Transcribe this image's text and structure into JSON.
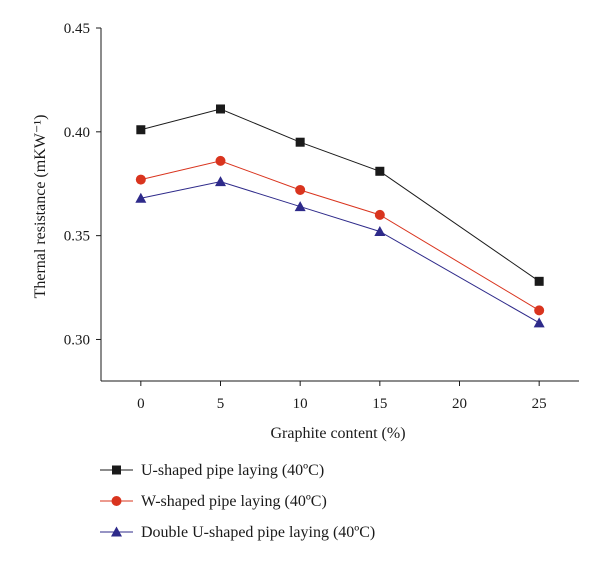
{
  "chart_data": {
    "type": "line",
    "xlabel": "Graphite content (%)",
    "ylabel": "Thernal resistance (mKW⁻¹)",
    "x_ticks": [
      "0",
      "5",
      "10",
      "15",
      "20",
      "25"
    ],
    "y_ticks": [
      "0.30",
      "0.35",
      "0.40",
      "0.45"
    ],
    "xlim": [
      -2.5,
      27.5
    ],
    "ylim": [
      0.28,
      0.45
    ],
    "grid": false,
    "legend_position": "bottom-left",
    "x": [
      0,
      5,
      10,
      15,
      25
    ],
    "series": [
      {
        "name": "U-shaped pipe laying (40ºC)",
        "marker": "square",
        "color": "#1a1a1a",
        "values": [
          0.401,
          0.411,
          0.395,
          0.381,
          0.328
        ]
      },
      {
        "name": "W-shaped pipe laying (40ºC)",
        "marker": "circle",
        "color": "#d9341e",
        "values": [
          0.377,
          0.386,
          0.372,
          0.36,
          0.314
        ]
      },
      {
        "name": "Double U-shaped pipe laying (40ºC)",
        "marker": "triangle",
        "color": "#2e2a8a",
        "values": [
          0.368,
          0.376,
          0.364,
          0.352,
          0.308
        ]
      }
    ]
  }
}
